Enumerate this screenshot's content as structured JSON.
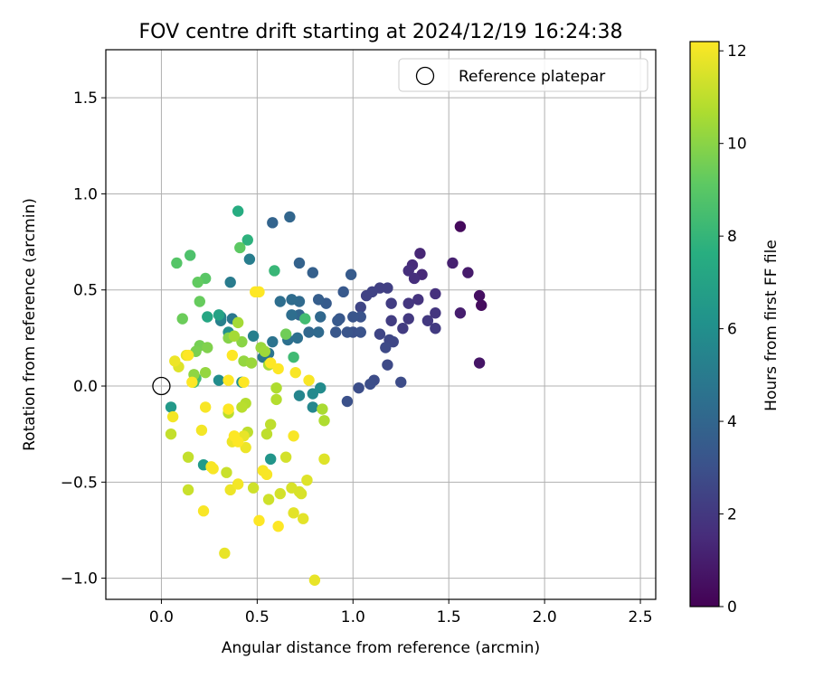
{
  "chart_data": {
    "type": "scatter",
    "title": "FOV centre drift starting at 2024/12/19 16:24:38",
    "xlabel": "Angular distance from reference (arcmin)",
    "ylabel": "Rotation from reference (arcmin)",
    "xlim": [
      -0.29,
      2.58
    ],
    "ylim": [
      -1.11,
      1.75
    ],
    "xticks": [
      0.0,
      0.5,
      1.0,
      1.5,
      2.0,
      2.5
    ],
    "xtick_labels": [
      "0.0",
      "0.5",
      "1.0",
      "1.5",
      "2.0",
      "2.5"
    ],
    "yticks": [
      -1.0,
      -0.5,
      0.0,
      0.5,
      1.0,
      1.5
    ],
    "ytick_labels": [
      "−1.0",
      "−0.5",
      "0.0",
      "0.5",
      "1.0",
      "1.5"
    ],
    "grid": true,
    "legend": {
      "position": "top-right",
      "label": "Reference platepar"
    },
    "reference_point": {
      "x": 0.0,
      "y": 0.0
    },
    "colorbar": {
      "label": "Hours from first FF file",
      "range": [
        0,
        12.2
      ],
      "ticks": [
        0,
        2,
        4,
        6,
        8,
        10,
        12
      ],
      "tick_labels": [
        "0",
        "2",
        "4",
        "6",
        "8",
        "10",
        "12"
      ],
      "colormap": "viridis"
    },
    "points": [
      [
        1.56,
        0.83,
        0.3
      ],
      [
        1.67,
        0.42,
        0.4
      ],
      [
        1.66,
        0.47,
        0.5
      ],
      [
        1.66,
        0.12,
        0.7
      ],
      [
        1.6,
        0.59,
        0.9
      ],
      [
        1.56,
        0.38,
        1.0
      ],
      [
        1.52,
        0.64,
        1.1
      ],
      [
        1.35,
        0.69,
        1.3
      ],
      [
        1.36,
        0.58,
        1.4
      ],
      [
        1.31,
        0.63,
        1.5
      ],
      [
        1.29,
        0.6,
        1.6
      ],
      [
        1.32,
        0.56,
        1.6
      ],
      [
        1.43,
        0.48,
        1.7
      ],
      [
        1.34,
        0.45,
        1.8
      ],
      [
        1.29,
        0.43,
        1.9
      ],
      [
        1.43,
        0.38,
        1.9
      ],
      [
        1.39,
        0.34,
        2.0
      ],
      [
        1.29,
        0.35,
        2.0
      ],
      [
        1.43,
        0.3,
        2.1
      ],
      [
        1.26,
        0.3,
        2.1
      ],
      [
        1.2,
        0.43,
        2.2
      ],
      [
        1.2,
        0.34,
        2.2
      ],
      [
        1.18,
        0.51,
        2.3
      ],
      [
        1.14,
        0.51,
        2.3
      ],
      [
        1.1,
        0.49,
        2.4
      ],
      [
        1.07,
        0.47,
        2.4
      ],
      [
        1.04,
        0.41,
        2.5
      ],
      [
        1.14,
        0.27,
        2.5
      ],
      [
        1.19,
        0.24,
        2.6
      ],
      [
        1.21,
        0.23,
        2.6
      ],
      [
        1.17,
        0.2,
        2.7
      ],
      [
        1.18,
        0.11,
        2.7
      ],
      [
        1.25,
        0.02,
        2.8
      ],
      [
        1.11,
        0.03,
        2.8
      ],
      [
        1.09,
        0.01,
        2.9
      ],
      [
        1.03,
        -0.01,
        2.9
      ],
      [
        0.97,
        -0.08,
        3.0
      ],
      [
        1.0,
        0.28,
        3.0
      ],
      [
        1.04,
        0.28,
        3.1
      ],
      [
        1.04,
        0.36,
        3.1
      ],
      [
        1.0,
        0.36,
        3.2
      ],
      [
        0.97,
        0.28,
        3.2
      ],
      [
        0.91,
        0.28,
        3.3
      ],
      [
        0.93,
        0.35,
        3.3
      ],
      [
        0.92,
        0.34,
        3.4
      ],
      [
        0.95,
        0.49,
        3.4
      ],
      [
        0.99,
        0.58,
        3.5
      ],
      [
        0.86,
        0.43,
        3.5
      ],
      [
        0.82,
        0.45,
        3.6
      ],
      [
        0.79,
        0.59,
        3.7
      ],
      [
        0.72,
        0.64,
        3.8
      ],
      [
        0.58,
        0.85,
        3.9
      ],
      [
        0.67,
        0.88,
        4.0
      ],
      [
        0.72,
        0.37,
        4.0
      ],
      [
        0.77,
        0.28,
        4.1
      ],
      [
        0.83,
        0.36,
        4.1
      ],
      [
        0.82,
        0.28,
        4.2
      ],
      [
        0.72,
        0.44,
        4.2
      ],
      [
        0.68,
        0.45,
        4.3
      ],
      [
        0.68,
        0.37,
        4.4
      ],
      [
        0.62,
        0.44,
        4.4
      ],
      [
        0.66,
        0.24,
        4.5
      ],
      [
        0.71,
        0.25,
        4.5
      ],
      [
        0.58,
        0.23,
        4.6
      ],
      [
        0.56,
        0.17,
        4.7
      ],
      [
        0.53,
        0.15,
        4.8
      ],
      [
        0.37,
        0.35,
        4.8
      ],
      [
        0.36,
        0.54,
        5.0
      ],
      [
        0.46,
        0.66,
        5.1
      ],
      [
        0.48,
        0.26,
        5.2
      ],
      [
        0.31,
        0.34,
        5.3
      ],
      [
        0.31,
        0.36,
        5.4
      ],
      [
        0.72,
        -0.05,
        5.5
      ],
      [
        0.79,
        -0.11,
        5.6
      ],
      [
        0.79,
        -0.04,
        5.7
      ],
      [
        0.83,
        -0.01,
        5.8
      ],
      [
        0.3,
        0.03,
        5.9
      ],
      [
        0.35,
        0.28,
        6.0
      ],
      [
        0.42,
        0.02,
        6.1
      ],
      [
        0.57,
        -0.38,
        6.3
      ],
      [
        0.05,
        -0.11,
        6.5
      ],
      [
        0.22,
        -0.41,
        6.6
      ],
      [
        0.3,
        0.37,
        7.0
      ],
      [
        0.24,
        0.36,
        7.2
      ],
      [
        0.4,
        0.91,
        7.5
      ],
      [
        0.45,
        0.76,
        7.8
      ],
      [
        0.59,
        0.6,
        8.1
      ],
      [
        0.69,
        0.15,
        8.3
      ],
      [
        0.75,
        0.35,
        8.4
      ],
      [
        0.17,
        0.02,
        8.5
      ],
      [
        0.18,
        0.04,
        8.5
      ],
      [
        0.15,
        0.68,
        8.7
      ],
      [
        0.08,
        0.64,
        8.9
      ],
      [
        0.23,
        0.56,
        9.0
      ],
      [
        0.41,
        0.72,
        9.1
      ],
      [
        0.19,
        0.54,
        9.2
      ],
      [
        0.2,
        0.44,
        9.3
      ],
      [
        0.11,
        0.35,
        9.4
      ],
      [
        0.65,
        0.27,
        9.5
      ],
      [
        0.2,
        0.21,
        9.6
      ],
      [
        0.18,
        0.18,
        9.7
      ],
      [
        0.24,
        0.2,
        9.8
      ],
      [
        0.35,
        0.25,
        9.9
      ],
      [
        0.42,
        0.23,
        10.0
      ],
      [
        0.17,
        0.06,
        10.1
      ],
      [
        0.23,
        0.07,
        10.2
      ],
      [
        0.43,
        0.13,
        10.2
      ],
      [
        0.47,
        0.12,
        10.3
      ],
      [
        0.52,
        0.2,
        10.3
      ],
      [
        0.54,
        0.18,
        10.4
      ],
      [
        0.38,
        0.26,
        10.5
      ],
      [
        0.4,
        0.33,
        10.5
      ],
      [
        0.56,
        0.11,
        10.6
      ],
      [
        0.84,
        -0.12,
        10.6
      ],
      [
        0.85,
        -0.18,
        10.7
      ],
      [
        0.6,
        -0.01,
        10.7
      ],
      [
        0.6,
        -0.07,
        10.8
      ],
      [
        0.44,
        -0.09,
        10.8
      ],
      [
        0.42,
        -0.11,
        10.9
      ],
      [
        0.35,
        -0.14,
        10.9
      ],
      [
        0.45,
        -0.24,
        11.0
      ],
      [
        0.57,
        -0.2,
        11.0
      ],
      [
        0.55,
        -0.25,
        11.0
      ],
      [
        0.05,
        -0.25,
        11.1
      ],
      [
        0.14,
        -0.37,
        11.1
      ],
      [
        0.14,
        -0.54,
        11.2
      ],
      [
        0.34,
        -0.45,
        11.2
      ],
      [
        0.48,
        -0.53,
        11.3
      ],
      [
        0.56,
        -0.59,
        11.3
      ],
      [
        0.65,
        -0.37,
        11.4
      ],
      [
        0.62,
        -0.56,
        11.4
      ],
      [
        0.68,
        -0.53,
        11.5
      ],
      [
        0.72,
        -0.55,
        11.5
      ],
      [
        0.73,
        -0.56,
        11.5
      ],
      [
        0.76,
        -0.49,
        11.6
      ],
      [
        0.85,
        -0.38,
        11.6
      ],
      [
        0.69,
        -0.66,
        11.7
      ],
      [
        0.74,
        -0.69,
        11.7
      ],
      [
        0.33,
        -0.87,
        11.8
      ],
      [
        0.8,
        -1.01,
        11.8
      ],
      [
        0.43,
        -0.26,
        11.8
      ],
      [
        0.44,
        -0.32,
        11.9
      ],
      [
        0.37,
        -0.29,
        11.9
      ],
      [
        0.36,
        -0.54,
        11.9
      ],
      [
        0.4,
        -0.51,
        12.0
      ],
      [
        0.09,
        0.1,
        11.6
      ],
      [
        0.13,
        0.16,
        11.8
      ],
      [
        0.07,
        0.13,
        11.9
      ],
      [
        0.06,
        -0.16,
        12.0
      ],
      [
        0.21,
        -0.23,
        12.0
      ],
      [
        0.23,
        -0.11,
        12.1
      ],
      [
        0.27,
        -0.43,
        12.1
      ],
      [
        0.26,
        -0.42,
        12.1
      ],
      [
        0.22,
        -0.65,
        12.1
      ],
      [
        0.4,
        -0.29,
        12.2
      ],
      [
        0.38,
        -0.26,
        12.2
      ],
      [
        0.35,
        -0.12,
        12.2
      ],
      [
        0.35,
        0.03,
        12.2
      ],
      [
        0.37,
        0.16,
        12.2
      ],
      [
        0.43,
        0.02,
        12.2
      ],
      [
        0.49,
        0.49,
        12.2
      ],
      [
        0.51,
        0.49,
        12.2
      ],
      [
        0.57,
        0.12,
        12.2
      ],
      [
        0.61,
        0.09,
        12.2
      ],
      [
        0.7,
        0.07,
        12.1
      ],
      [
        0.77,
        0.03,
        12.1
      ],
      [
        0.69,
        -0.26,
        12.1
      ],
      [
        0.53,
        -0.44,
        12.1
      ],
      [
        0.55,
        -0.46,
        12.1
      ],
      [
        0.51,
        -0.7,
        12.2
      ],
      [
        0.61,
        -0.73,
        12.2
      ],
      [
        0.16,
        0.02,
        12.2
      ],
      [
        0.14,
        0.16,
        12.2
      ]
    ]
  }
}
